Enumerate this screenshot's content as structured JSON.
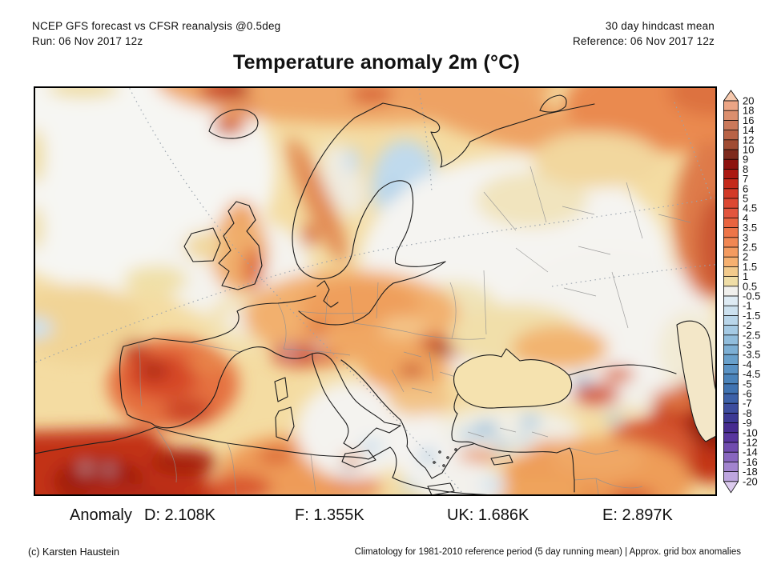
{
  "header": {
    "left_line1": "NCEP GFS forecast vs CFSR reanalysis @0.5deg",
    "left_line2": "Run: 06 Nov 2017 12z",
    "right_line1": "30 day hindcast mean",
    "right_line2": "Reference: 06 Nov 2017 12z"
  },
  "title": "Temperature anomaly 2m (°C)",
  "colorbar": {
    "unit": "°C",
    "labels": [
      "20",
      "18",
      "16",
      "14",
      "12",
      "10",
      "9",
      "8",
      "7",
      "6",
      "5",
      "4.5",
      "4",
      "3.5",
      "3",
      "2.5",
      "2",
      "1.5",
      "1",
      "0.5",
      "-0.5",
      "-1",
      "-1.5",
      "-2",
      "-2.5",
      "-3",
      "-3.5",
      "-4",
      "-4.5",
      "-5",
      "-6",
      "-7",
      "-8",
      "-9",
      "-10",
      "-12",
      "-14",
      "-16",
      "-18",
      "-20"
    ],
    "arrow_top_color": "#F6C9AE",
    "arrow_bottom_color": "#DCCBEE",
    "segment_colors": [
      "#ECA585",
      "#DB8F6E",
      "#CA795A",
      "#B86346",
      "#A04C33",
      "#7E2A1D",
      "#8D120E",
      "#AB1912",
      "#C42A1B",
      "#D23A28",
      "#DC4833",
      "#E2553E",
      "#E96440",
      "#EE7548",
      "#F18753",
      "#F49B60",
      "#F6B070",
      "#F2CA8C",
      "#EFDDA6",
      "#F1F0ED",
      "#DEEBF4",
      "#CCE1EF",
      "#B9D6EA",
      "#A5CAE4",
      "#91BDDC",
      "#7DAFD4",
      "#69A0CB",
      "#5A92C4",
      "#4B83BA",
      "#4073B1",
      "#3D61A8",
      "#3D4D9E",
      "#3C3994",
      "#462C90",
      "#58369E",
      "#704CAE",
      "#8866BE",
      "#A284CE",
      "#BEA6DF"
    ]
  },
  "anomaly": {
    "heading": "Anomaly",
    "items": [
      {
        "text": "D: 2.108K"
      },
      {
        "text": "F: 1.355K"
      },
      {
        "text": "UK: 1.686K"
      },
      {
        "text": "E: 2.897K"
      }
    ]
  },
  "footer": {
    "left": "(c) Karsten Haustein",
    "right": "Climatology for 1981-2010 reference period (5 day running mean) | Approx. grid box anomalies"
  }
}
